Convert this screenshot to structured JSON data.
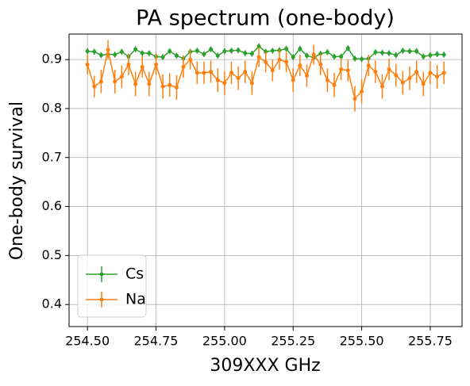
{
  "chart_data": {
    "type": "errorbar_line",
    "title": "PA spectrum (one-body)",
    "xlabel": "309XXX GHz",
    "ylabel": "One-body survival",
    "x": [
      254.5,
      254.525,
      254.55,
      254.575,
      254.6,
      254.625,
      254.65,
      254.675,
      254.7,
      254.725,
      254.75,
      254.775,
      254.8,
      254.825,
      254.85,
      254.875,
      254.9,
      254.925,
      254.95,
      254.975,
      255.0,
      255.025,
      255.05,
      255.075,
      255.1,
      255.125,
      255.15,
      255.175,
      255.2,
      255.225,
      255.25,
      255.275,
      255.3,
      255.325,
      255.35,
      255.375,
      255.4,
      255.425,
      255.45,
      255.475,
      255.5,
      255.525,
      255.55,
      255.575,
      255.6,
      255.625,
      255.65,
      255.675,
      255.7,
      255.725,
      255.75,
      255.775,
      255.8
    ],
    "series": [
      {
        "name": "Cs",
        "color": "#2ca02c",
        "values": [
          0.917,
          0.916,
          0.909,
          0.911,
          0.91,
          0.916,
          0.906,
          0.921,
          0.913,
          0.913,
          0.906,
          0.905,
          0.917,
          0.908,
          0.902,
          0.916,
          0.918,
          0.911,
          0.921,
          0.908,
          0.917,
          0.918,
          0.919,
          0.913,
          0.912,
          0.927,
          0.916,
          0.918,
          0.919,
          0.922,
          0.905,
          0.922,
          0.908,
          0.904,
          0.912,
          0.915,
          0.906,
          0.906,
          0.923,
          0.902,
          0.901,
          0.902,
          0.915,
          0.914,
          0.913,
          0.909,
          0.918,
          0.917,
          0.917,
          0.906,
          0.909,
          0.911,
          0.91
        ],
        "errors": [
          0.006,
          0.006,
          0.006,
          0.006,
          0.006,
          0.006,
          0.006,
          0.006,
          0.006,
          0.006,
          0.006,
          0.006,
          0.006,
          0.006,
          0.006,
          0.006,
          0.006,
          0.006,
          0.006,
          0.006,
          0.006,
          0.006,
          0.006,
          0.006,
          0.006,
          0.006,
          0.006,
          0.006,
          0.006,
          0.006,
          0.006,
          0.006,
          0.006,
          0.006,
          0.006,
          0.006,
          0.006,
          0.006,
          0.006,
          0.006,
          0.006,
          0.006,
          0.006,
          0.006,
          0.006,
          0.006,
          0.006,
          0.006,
          0.006,
          0.006,
          0.006,
          0.006,
          0.006
        ]
      },
      {
        "name": "Na",
        "color": "#ff7f0e",
        "values": [
          0.89,
          0.845,
          0.855,
          0.92,
          0.855,
          0.865,
          0.89,
          0.85,
          0.885,
          0.85,
          0.89,
          0.845,
          0.848,
          0.843,
          0.885,
          0.9,
          0.873,
          0.873,
          0.875,
          0.858,
          0.852,
          0.873,
          0.862,
          0.875,
          0.852,
          0.905,
          0.895,
          0.878,
          0.9,
          0.895,
          0.858,
          0.888,
          0.867,
          0.91,
          0.89,
          0.858,
          0.848,
          0.88,
          0.878,
          0.82,
          0.835,
          0.888,
          0.875,
          0.845,
          0.88,
          0.868,
          0.853,
          0.862,
          0.875,
          0.85,
          0.873,
          0.865,
          0.873
        ],
        "errors": [
          0.02,
          0.022,
          0.024,
          0.02,
          0.024,
          0.023,
          0.022,
          0.025,
          0.022,
          0.025,
          0.022,
          0.025,
          0.024,
          0.025,
          0.022,
          0.02,
          0.023,
          0.023,
          0.023,
          0.024,
          0.024,
          0.023,
          0.024,
          0.023,
          0.024,
          0.02,
          0.021,
          0.022,
          0.021,
          0.021,
          0.024,
          0.022,
          0.023,
          0.02,
          0.022,
          0.024,
          0.025,
          0.022,
          0.022,
          0.026,
          0.025,
          0.022,
          0.023,
          0.025,
          0.022,
          0.023,
          0.024,
          0.024,
          0.023,
          0.025,
          0.023,
          0.024,
          0.023
        ]
      }
    ],
    "xlim": [
      254.433,
      255.866
    ],
    "ylim": [
      0.355,
      0.952
    ],
    "xticks": [
      {
        "value": 254.5,
        "label": "254.50"
      },
      {
        "value": 254.75,
        "label": "254.75"
      },
      {
        "value": 255.0,
        "label": "255.00"
      },
      {
        "value": 255.25,
        "label": "255.25"
      },
      {
        "value": 255.5,
        "label": "255.50"
      },
      {
        "value": 255.75,
        "label": "255.75"
      }
    ],
    "yticks": [
      0.4,
      0.5,
      0.6,
      0.7,
      0.8,
      0.9
    ],
    "grid": true,
    "legend": "lower left"
  }
}
